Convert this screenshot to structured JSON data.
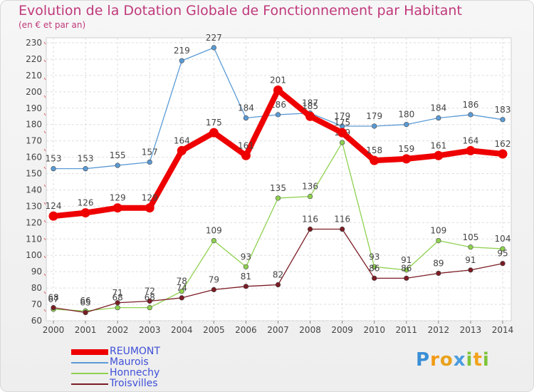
{
  "header": {
    "title": "Evolution de la Dotation Globale de Fonctionnement par Habitant",
    "subtitle": "(en € et par an)"
  },
  "chart_data": {
    "type": "line",
    "title": "Evolution de la Dotation Globale de Fonctionnement par Habitant",
    "subtitle": "(en € et par an)",
    "xlabel": "",
    "ylabel": "",
    "x": [
      "2000",
      "2001",
      "2002",
      "2003",
      "2004",
      "2005",
      "2006",
      "2007",
      "2008",
      "2009",
      "2010",
      "2011",
      "2012",
      "2013",
      "2014"
    ],
    "ylim": [
      60,
      230
    ],
    "yticks": [
      60,
      70,
      80,
      90,
      100,
      110,
      120,
      130,
      140,
      150,
      160,
      170,
      180,
      190,
      200,
      210,
      220,
      230
    ],
    "grid": true,
    "legend_position": "bottom-left",
    "series": [
      {
        "name": "Maurois",
        "color": "#5b9bd5",
        "values": [
          153,
          153,
          155,
          157,
          219,
          227,
          184,
          186,
          187,
          179,
          179,
          180,
          184,
          186,
          183
        ]
      },
      {
        "name": "Honnechy",
        "color": "#8fd14f",
        "values": [
          67,
          66,
          68,
          68,
          78,
          109,
          93,
          135,
          136,
          169,
          93,
          91,
          109,
          105,
          104
        ]
      },
      {
        "name": "Troisvilles",
        "color": "#7b1c24",
        "values": [
          68,
          65,
          71,
          72,
          74,
          79,
          81,
          82,
          116,
          116,
          86,
          86,
          89,
          91,
          95
        ]
      },
      {
        "name": "REUMONT",
        "color": "#ee0000",
        "values": [
          124,
          126,
          129,
          129,
          164,
          175,
          161,
          201,
          185,
          175,
          158,
          159,
          161,
          164,
          162
        ]
      }
    ],
    "data_labels": {
      "Maurois": [
        "153",
        "153",
        "155",
        "157",
        "219",
        "227",
        "184",
        "186",
        "187",
        "179",
        "179",
        "180",
        "184",
        "186",
        "183"
      ],
      "Honnechy": [
        "67",
        "66",
        "68",
        "68",
        "78",
        "109",
        "93",
        "135",
        "136",
        "169",
        "93",
        "91",
        "109",
        "105",
        "104"
      ],
      "Troisvilles": [
        "68",
        "65",
        "71",
        "72",
        "74",
        "79",
        "81",
        "82",
        "116",
        "116",
        "86",
        "86",
        "89",
        "91",
        "95"
      ],
      "REUMONT": [
        "124",
        "126",
        "129",
        "129",
        "164",
        "175",
        "161",
        "201",
        "185",
        "175",
        "158",
        "159",
        "161",
        "164",
        "162"
      ]
    }
  },
  "legend": {
    "items": [
      {
        "label": "REUMONT",
        "color": "#ee0000",
        "thickness": 8
      },
      {
        "label": "Maurois",
        "color": "#5b9bd5",
        "thickness": 2
      },
      {
        "label": "Honnechy",
        "color": "#8fd14f",
        "thickness": 2
      },
      {
        "label": "Troisvilles",
        "color": "#7b1c24",
        "thickness": 2
      }
    ]
  },
  "logo": {
    "letters": [
      {
        "char": "P",
        "color": "#3a8fd6"
      },
      {
        "char": "r",
        "color": "#f29a16"
      },
      {
        "char": "o",
        "color": "#e8a21c"
      },
      {
        "char": "x",
        "color": "#4b9cdf"
      },
      {
        "char": "i",
        "color": "#7fc43a"
      },
      {
        "char": "t",
        "color": "#f2a31b"
      },
      {
        "char": "i",
        "color": "#7fc43a"
      }
    ]
  }
}
